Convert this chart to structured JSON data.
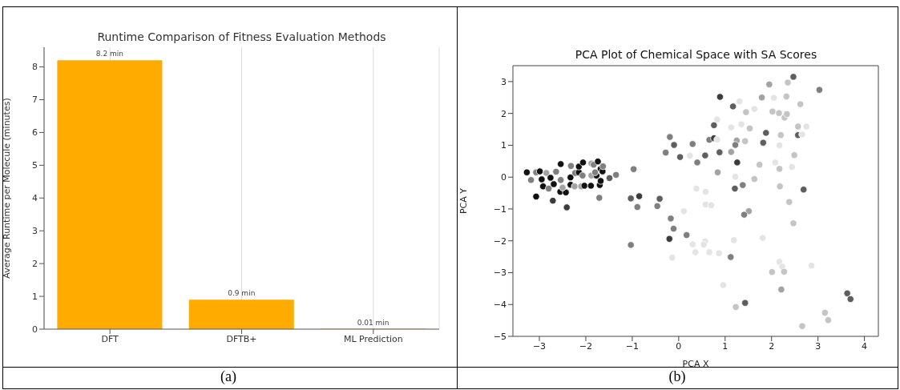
{
  "chart_data": [
    {
      "type": "bar",
      "title": "Runtime Comparison of Fitness Evaluation Methods",
      "ylabel": "Average Runtime per Molecule (minutes)",
      "categories": [
        "DFT",
        "DFTB+",
        "ML Prediction"
      ],
      "values": [
        8.2,
        0.9,
        0.01
      ],
      "color": "#ffab00",
      "value_labels": [
        "8.2 min",
        "0.9 min",
        "0.01 min"
      ],
      "ylim": [
        0,
        8.6
      ],
      "yticks": [
        0,
        1,
        2,
        3,
        4,
        5,
        6,
        7,
        8
      ],
      "grid": "x",
      "annotations": [
        "(a)"
      ]
    },
    {
      "type": "scatter",
      "title": "PCA Plot of Chemical Space with SA Scores",
      "xlabel": "PCA X",
      "ylabel": "PCA Y",
      "marker": "circle",
      "grid": false,
      "annotations": [
        "(b)"
      ],
      "xlim": [
        -3.57,
        4.3
      ],
      "ylim": [
        -5,
        3.5
      ],
      "xticks": [
        {
          "value": -3,
          "label": "−3"
        },
        {
          "value": -2,
          "label": "−2"
        },
        {
          "value": -1,
          "label": "−1"
        },
        0,
        1,
        2,
        3,
        4
      ],
      "yticks": [
        {
          "value": -5,
          "label": "−5"
        },
        {
          "value": -4,
          "label": "−4"
        },
        {
          "value": -3,
          "label": "−3"
        },
        {
          "value": -2,
          "label": "−2"
        },
        {
          "value": -1,
          "label": "−1"
        },
        0,
        1,
        2,
        3
      ],
      "x": [
        -3.27,
        -3.18,
        -3.07,
        -2.99,
        -2.95,
        -2.92,
        -2.85,
        -2.8,
        -2.76,
        -2.69,
        -2.64,
        -2.54,
        -2.54,
        -2.55,
        -2.43,
        -2.5,
        -2.33,
        -2.33,
        -2.32,
        -2.23,
        -2.15,
        -2.15,
        -2.06,
        -2.07,
        -2.24,
        -2.1,
        -2.03,
        -1.89,
        -1.88,
        -1.83,
        -1.88,
        -1.77,
        -1.74,
        -1.8,
        -1.68,
        -1.64,
        -1.63,
        -1.7,
        -1.68,
        -1.71,
        -1.49,
        -1.35,
        -3.07,
        -2.71,
        -2.41,
        -0.97,
        -1.03,
        -0.85,
        -0.89,
        -1.03,
        2.47,
        1.95,
        2.35,
        3.03,
        0.89,
        1.79,
        2.05,
        2.32,
        1.31,
        2.62,
        1.17,
        1.45,
        1.63,
        2.02,
        2.16,
        2.28,
        2.33,
        0.83,
        0.76,
        1.13,
        1.35,
        1.53,
        2.57,
        2.75,
        -0.19,
        -0.1,
        0.3,
        0.66,
        0.76,
        0.83,
        1.25,
        1.22,
        1.43,
        1.88,
        1.82,
        2.2,
        2.57,
        2.66,
        2.17,
        -0.28,
        0.03,
        0.24,
        0.57,
        0.4,
        0.88,
        1.13,
        1.26,
        1.74,
        2.08,
        2.49,
        2.17,
        2.44,
        0.84,
        1.22,
        1.63,
        1.38,
        1.21,
        2.18,
        2.69,
        0.38,
        0.58,
        2.38,
        -0.41,
        -0.46,
        0.11,
        0.58,
        0.7,
        1.51,
        1.41,
        -0.17,
        -0.11,
        -0.2,
        0.17,
        -0.14,
        0.57,
        0.54,
        0.3,
        0.36,
        0.66,
        0.87,
        1.19,
        1.12,
        0.96,
        1.43,
        1.23,
        1.81,
        2.47,
        2.01,
        2.17,
        2.23,
        2.27,
        2.21,
        2.66,
        2.86,
        3.15,
        3.22,
        3.63,
        3.7
      ],
      "values": [
        0.15,
        -0.09,
        0.15,
        0.18,
        -0.07,
        -0.29,
        0.13,
        -0.36,
        -0.02,
        -0.22,
        0.17,
        0.41,
        -0.09,
        -0.46,
        -0.48,
        -0.33,
        -0.01,
        -0.24,
        0.35,
        0.13,
        0.15,
        0.33,
        0.46,
        0.05,
        -0.29,
        -0.29,
        -0.27,
        -0.27,
        0.43,
        0.39,
        0.05,
        0.05,
        0.49,
        0.15,
        0.26,
        0.18,
        0.34,
        -0.25,
        -0.12,
        -0.65,
        -0.03,
        0.07,
        -0.61,
        -0.74,
        -0.95,
        0.25,
        -0.67,
        -0.6,
        -0.94,
        -2.13,
        3.15,
        2.91,
        2.97,
        2.74,
        2.52,
        2.5,
        2.49,
        2.53,
        2.38,
        2.29,
        2.22,
        2.04,
        2.14,
        2.06,
        2.01,
        1.87,
        1.98,
        1.81,
        1.63,
        1.56,
        1.66,
        1.53,
        1.59,
        1.59,
        1.26,
        1.01,
        1.04,
        1.17,
        1.22,
        1.18,
        1.15,
        1.01,
        1.13,
        1.39,
        1.08,
        1.32,
        1.32,
        1.34,
        1.0,
        0.77,
        0.63,
        0.67,
        0.68,
        0.46,
        0.78,
        0.79,
        0.46,
        0.39,
        0.46,
        0.69,
        0.26,
        0.32,
        0.15,
        0.01,
        -0.06,
        -0.25,
        -0.36,
        -0.29,
        -0.39,
        -0.36,
        -0.46,
        -0.78,
        -0.68,
        -0.91,
        -1.07,
        -0.86,
        -0.88,
        -1.07,
        -1.18,
        -1.3,
        -1.62,
        -1.94,
        -1.82,
        -2.53,
        -2.02,
        -2.12,
        -2.11,
        -2.36,
        -2.36,
        -2.39,
        -1.98,
        -2.51,
        -3.39,
        -3.95,
        -4.08,
        -1.91,
        -1.45,
        -2.98,
        -2.66,
        -2.81,
        -2.97,
        -3.53,
        -4.68,
        -2.78,
        -4.26,
        -4.49,
        -3.65,
        -3.83
      ],
      "colors": [
        "#111111",
        "#7f7f7f",
        "#7f7f7f",
        "#111111",
        "#111111",
        "#111111",
        "#a3a3a3",
        "#7f7f7f",
        "#111111",
        "#111111",
        "#7f7f7f",
        "#111111",
        "#7f7f7f",
        "#111111",
        "#111111",
        "#a3a3a3",
        "#111111",
        "#111111",
        "#7f7f7f",
        "#7f7f7f",
        "#111111",
        "#111111",
        "#111111",
        "#7f7f7f",
        "#a3a3a3",
        "#a3a3a3",
        "#111111",
        "#111111",
        "#a3a3a3",
        "#7f7f7f",
        "#a3a3a3",
        "#111111",
        "#111111",
        "#7f7f7f",
        "#111111",
        "#111111",
        "#7f7f7f",
        "#111111",
        "#111111",
        "#7f7f7f",
        "#5e5e5e",
        "#7f7f7f",
        "#111111",
        "#3c3c3c",
        "#3c3c3c",
        "#7f7f7f",
        "#5e5e5e",
        "#3c3c3c",
        "#7f7f7f",
        "#7f7f7f",
        "#5e5e5e",
        "#a3a3a3",
        "#c4c4c4",
        "#7f7f7f",
        "#3c3c3c",
        "#a3a3a3",
        "#e4e4e4",
        "#c4c4c4",
        "#e4e4e4",
        "#c4c4c4",
        "#5e5e5e",
        "#c4c4c4",
        "#e4e4e4",
        "#c4c4c4",
        "#c4c4c4",
        "#c4c4c4",
        "#c4c4c4",
        "#e4e4e4",
        "#5e5e5e",
        "#e4e4e4",
        "#e4e4e4",
        "#c4c4c4",
        "#c4c4c4",
        "#e4e4e4",
        "#7f7f7f",
        "#5e5e5e",
        "#7f7f7f",
        "#7f7f7f",
        "#3c3c3c",
        "#e4e4e4",
        "#a3a3a3",
        "#7f7f7f",
        "#c4c4c4",
        "#5e5e5e",
        "#5e5e5e",
        "#c4c4c4",
        "#5e5e5e",
        "#e4e4e4",
        "#e4e4e4",
        "#7f7f7f",
        "#5e5e5e",
        "#e4e4e4",
        "#5e5e5e",
        "#7f7f7f",
        "#5e5e5e",
        "#a3a3a3",
        "#3c3c3c",
        "#c4c4c4",
        "#e4e4e4",
        "#c4c4c4",
        "#c4c4c4",
        "#e4e4e4",
        "#a3a3a3",
        "#e4e4e4",
        "#c4c4c4",
        "#7f7f7f",
        "#5e5e5e",
        "#c4c4c4",
        "#5e5e5e",
        "#e4e4e4",
        "#e4e4e4",
        "#c4c4c4",
        "#5e5e5e",
        "#7f7f7f",
        "#e4e4e4",
        "#e4e4e4",
        "#e4e4e4",
        "#a3a3a3",
        "#7f7f7f",
        "#7f7f7f",
        "#7f7f7f",
        "#3c3c3c",
        "#7f7f7f",
        "#e4e4e4",
        "#e4e4e4",
        "#e4e4e4",
        "#e4e4e4",
        "#e4e4e4",
        "#e4e4e4",
        "#e4e4e4",
        "#e4e4e4",
        "#7f7f7f",
        "#e4e4e4",
        "#5e5e5e",
        "#c4c4c4",
        "#e4e4e4",
        "#c4c4c4",
        "#c4c4c4",
        "#e4e4e4",
        "#e4e4e4",
        "#c4c4c4",
        "#a3a3a3",
        "#c4c4c4",
        "#e4e4e4",
        "#c4c4c4",
        "#c4c4c4",
        "#5e5e5e",
        "#5e5e5e"
      ]
    }
  ]
}
